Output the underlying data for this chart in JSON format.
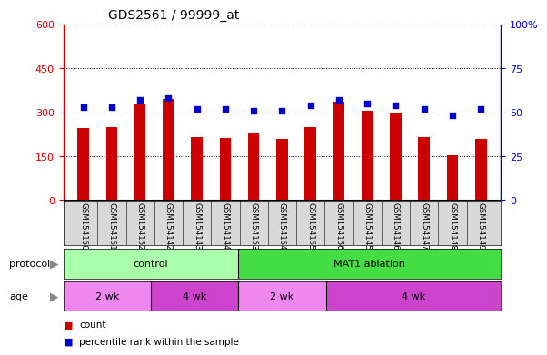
{
  "title": "GDS2561 / 99999_at",
  "samples": [
    "GSM154150",
    "GSM154151",
    "GSM154152",
    "GSM154142",
    "GSM154143",
    "GSM154144",
    "GSM154153",
    "GSM154154",
    "GSM154155",
    "GSM154156",
    "GSM154145",
    "GSM154146",
    "GSM154147",
    "GSM154148",
    "GSM154149"
  ],
  "counts": [
    245,
    248,
    330,
    345,
    215,
    212,
    228,
    210,
    250,
    335,
    305,
    300,
    215,
    153,
    210
  ],
  "percentiles": [
    53,
    53,
    57,
    58,
    52,
    52,
    51,
    51,
    54,
    57,
    55,
    54,
    52,
    48,
    52
  ],
  "bar_color": "#cc0000",
  "dot_color": "#0000cc",
  "left_ylim": [
    0,
    600
  ],
  "right_ylim": [
    0,
    100
  ],
  "left_yticks": [
    0,
    150,
    300,
    450,
    600
  ],
  "right_yticks": [
    0,
    25,
    50,
    75,
    100
  ],
  "right_yticklabels": [
    "0",
    "25",
    "50",
    "75",
    "100%"
  ],
  "protocol_groups": [
    {
      "label": "control",
      "start": 0,
      "end": 6,
      "color": "#aaffaa"
    },
    {
      "label": "MAT1 ablation",
      "start": 6,
      "end": 15,
      "color": "#44dd44"
    }
  ],
  "age_groups": [
    {
      "label": "2 wk",
      "start": 0,
      "end": 3,
      "color": "#ee88ee"
    },
    {
      "label": "4 wk",
      "start": 3,
      "end": 6,
      "color": "#cc44cc"
    },
    {
      "label": "2 wk",
      "start": 6,
      "end": 9,
      "color": "#ee88ee"
    },
    {
      "label": "4 wk",
      "start": 9,
      "end": 15,
      "color": "#cc44cc"
    }
  ],
  "legend_items": [
    {
      "label": "count",
      "color": "#cc0000"
    },
    {
      "label": "percentile rank within the sample",
      "color": "#0000cc"
    }
  ],
  "title_fontsize": 10,
  "axis_color_left": "#cc0000",
  "axis_color_right": "#0000cc",
  "protocol_label": "protocol",
  "age_label": "age",
  "bg_color": "#d8d8d8"
}
